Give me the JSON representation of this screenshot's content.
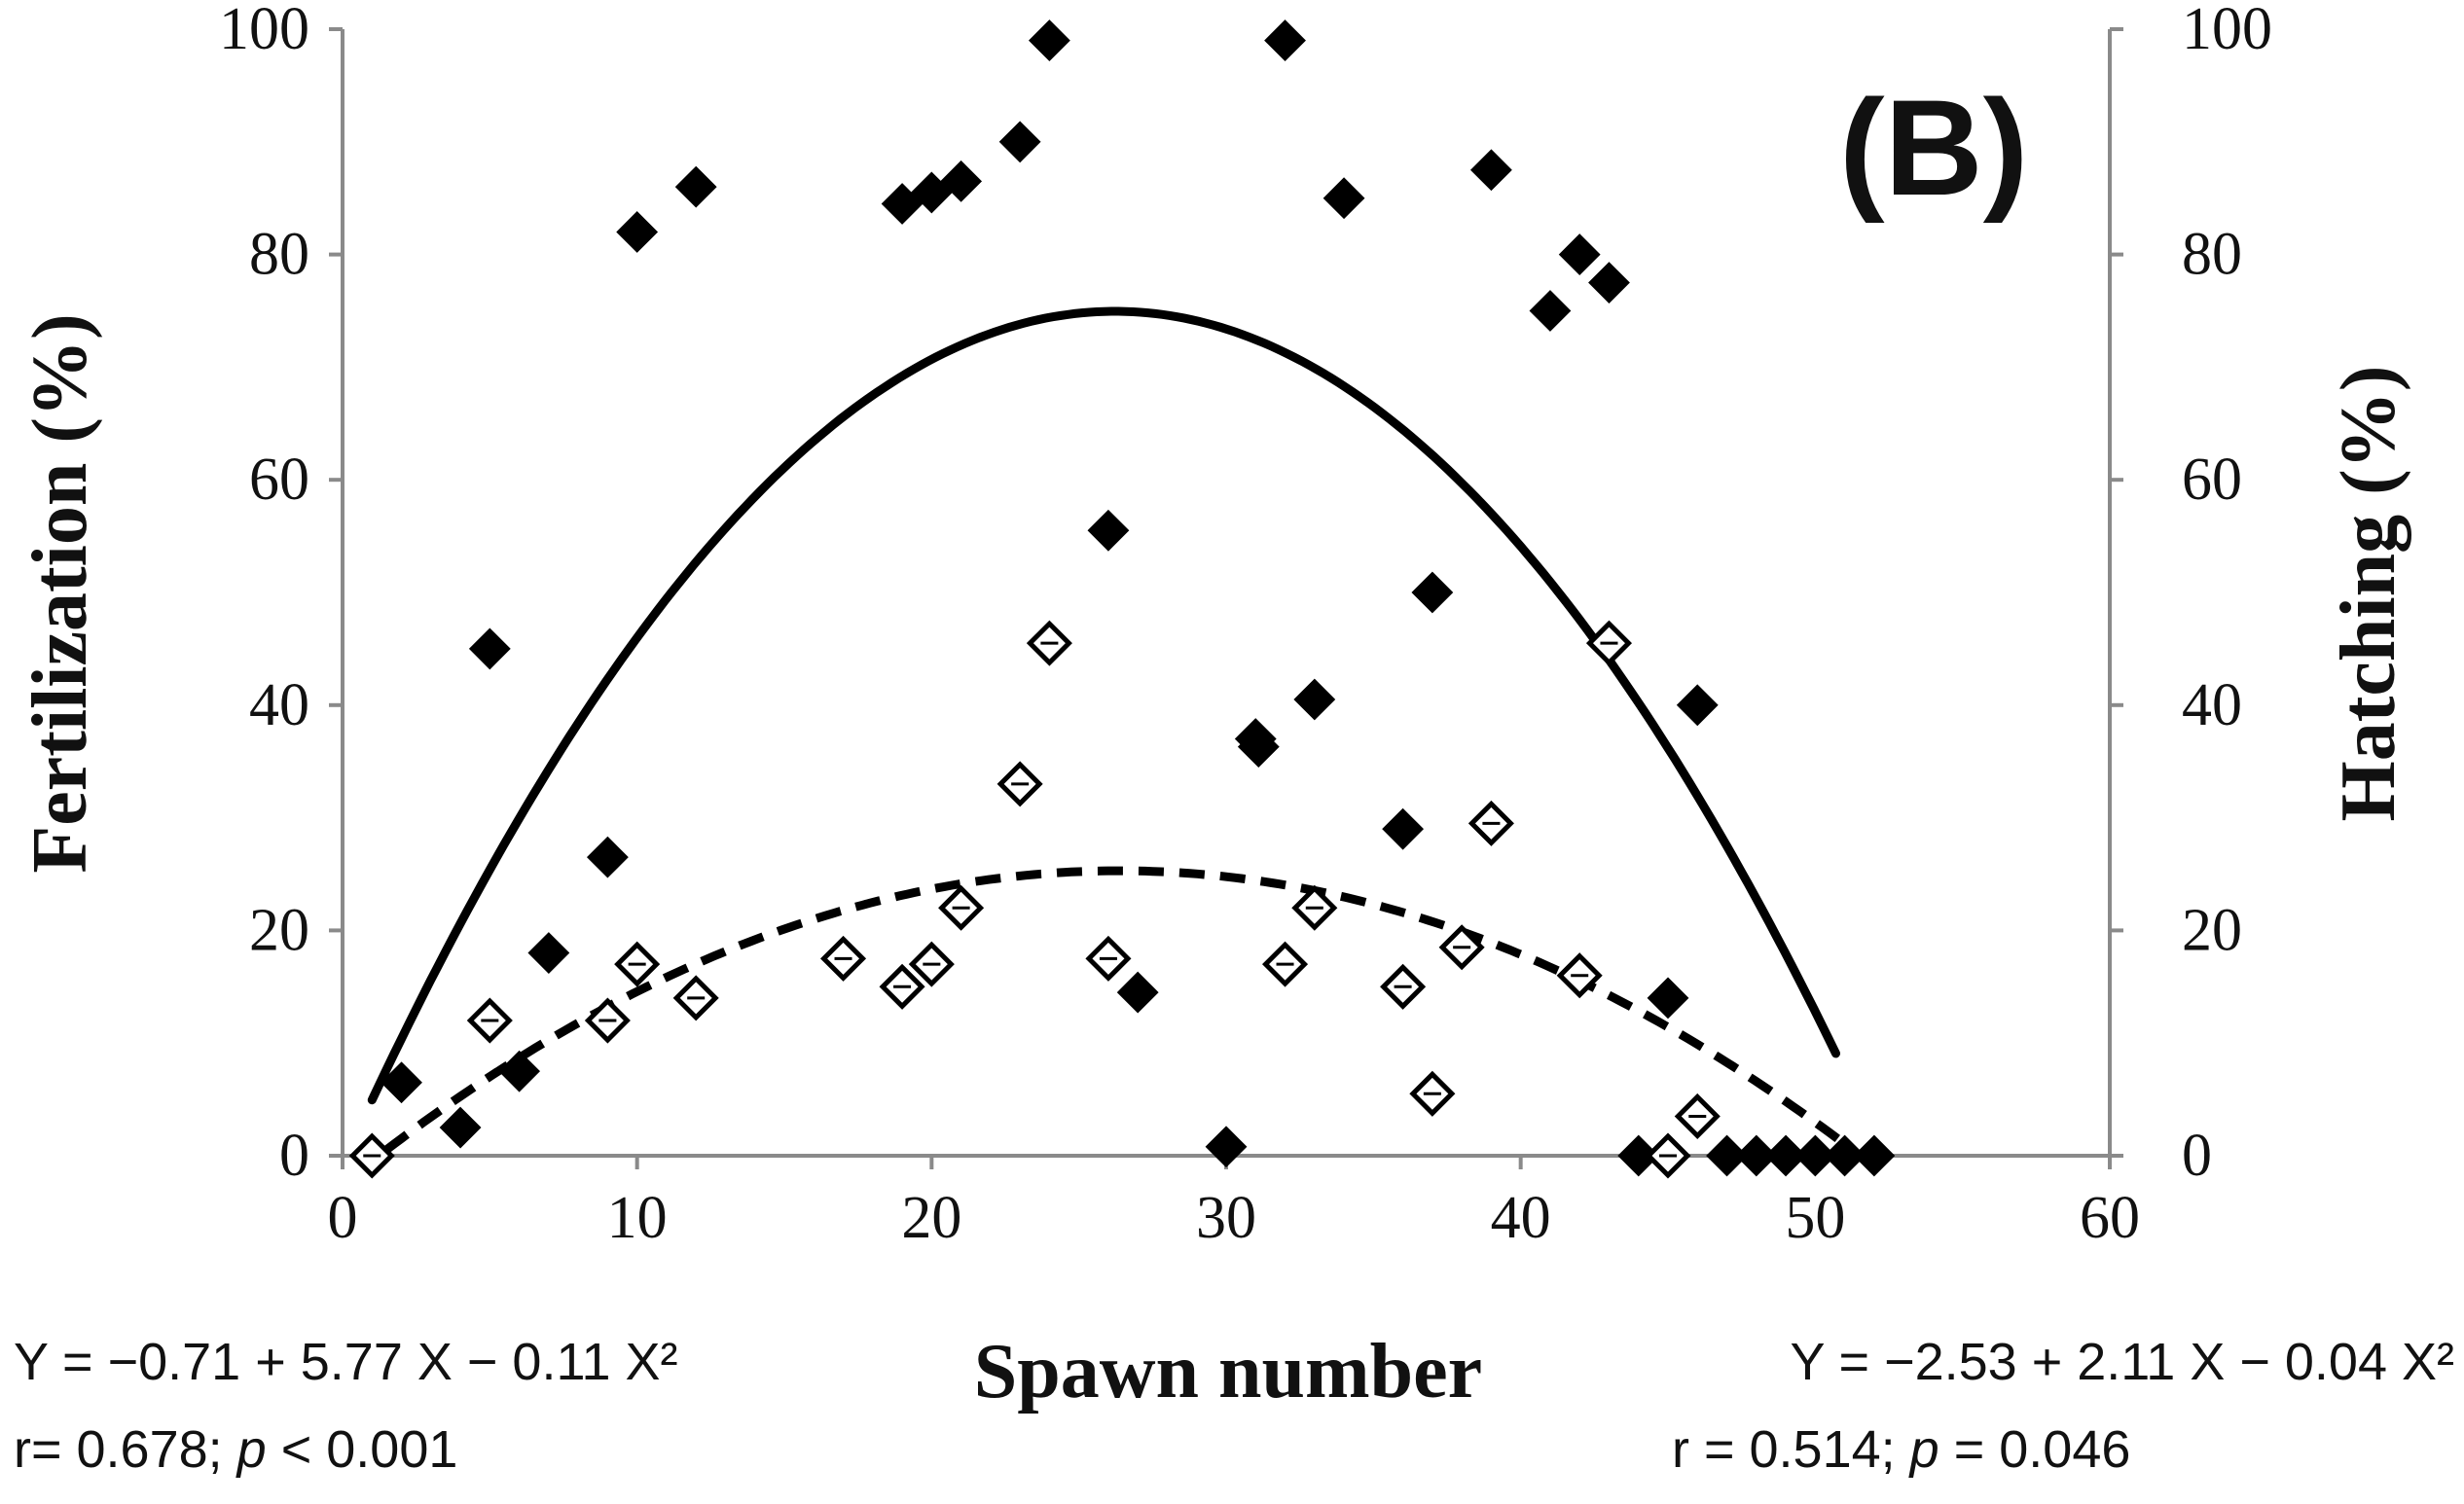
{
  "chart_data": {
    "type": "scatter",
    "panel_label": "(B)",
    "xlabel": "Spawn number",
    "ylabel_left": "Fertilization (%)",
    "ylabel_right": "Hatching (%)",
    "xlim": [
      0,
      60
    ],
    "ylim": [
      0,
      100
    ],
    "x_ticks": [
      "0",
      "10",
      "20",
      "30",
      "40",
      "50",
      "60"
    ],
    "y_ticks_left": [
      "0",
      "20",
      "40",
      "60",
      "80",
      "100"
    ],
    "y_ticks_right": [
      "0",
      "20",
      "40",
      "60",
      "80",
      "100"
    ],
    "series": [
      {
        "name": "Fertilization",
        "marker": "filled-diamond",
        "points": [
          [
            1,
            0
          ],
          [
            2,
            6.5
          ],
          [
            4,
            2.5
          ],
          [
            5,
            45
          ],
          [
            6,
            7.5
          ],
          [
            7,
            18
          ],
          [
            9,
            26.5
          ],
          [
            10,
            82
          ],
          [
            12,
            86
          ],
          [
            19,
            84.5
          ],
          [
            20,
            85.5
          ],
          [
            21,
            86.5
          ],
          [
            23,
            90
          ],
          [
            24,
            99
          ],
          [
            26,
            55.5
          ],
          [
            27,
            14.5
          ],
          [
            30,
            0.8
          ],
          [
            31,
            37
          ],
          [
            31.1,
            36.3
          ],
          [
            32,
            99
          ],
          [
            33,
            40.5
          ],
          [
            34,
            85
          ],
          [
            36,
            29
          ],
          [
            37,
            50
          ],
          [
            39,
            87.5
          ],
          [
            41,
            75
          ],
          [
            42,
            80
          ],
          [
            43,
            77.5
          ],
          [
            44,
            0
          ],
          [
            45,
            14
          ],
          [
            46,
            40
          ],
          [
            47,
            0
          ],
          [
            48,
            0
          ],
          [
            49,
            0
          ],
          [
            50,
            0
          ],
          [
            51,
            0
          ],
          [
            52,
            0
          ]
        ],
        "fit": {
          "a": -0.71,
          "b": 5.77,
          "c": -0.11,
          "style": "solid",
          "x_range": [
            1,
            50.7
          ]
        },
        "equation": "Y = −0.71 + 5.77  X − 0.11 X²",
        "stats_prefix": "r= 0.678; ",
        "stats_p": "p",
        "stats_suffix": " < 0.001"
      },
      {
        "name": "Hatching",
        "marker": "open-diamond",
        "points": [
          [
            1,
            0
          ],
          [
            5,
            12
          ],
          [
            9,
            12
          ],
          [
            10,
            17
          ],
          [
            12,
            14
          ],
          [
            17,
            17.5
          ],
          [
            19,
            15
          ],
          [
            20,
            17
          ],
          [
            21,
            22
          ],
          [
            23,
            33
          ],
          [
            24,
            45.5
          ],
          [
            26,
            17.5
          ],
          [
            32,
            17
          ],
          [
            33,
            22
          ],
          [
            36,
            15
          ],
          [
            37,
            5.5
          ],
          [
            38,
            18.5
          ],
          [
            39,
            29.5
          ],
          [
            42,
            16
          ],
          [
            43,
            45.5
          ],
          [
            45,
            0
          ],
          [
            46,
            3.5
          ]
        ],
        "fit": {
          "a": -2.53,
          "b": 2.11,
          "c": -0.04,
          "style": "dashed",
          "x_range": [
            1.5,
            52
          ]
        },
        "equation": "Y = −2.53 + 2.11  X − 0.04 X²",
        "stats_prefix": "r = 0.514;  ",
        "stats_p": "p",
        "stats_suffix": " = 0.046"
      }
    ]
  }
}
